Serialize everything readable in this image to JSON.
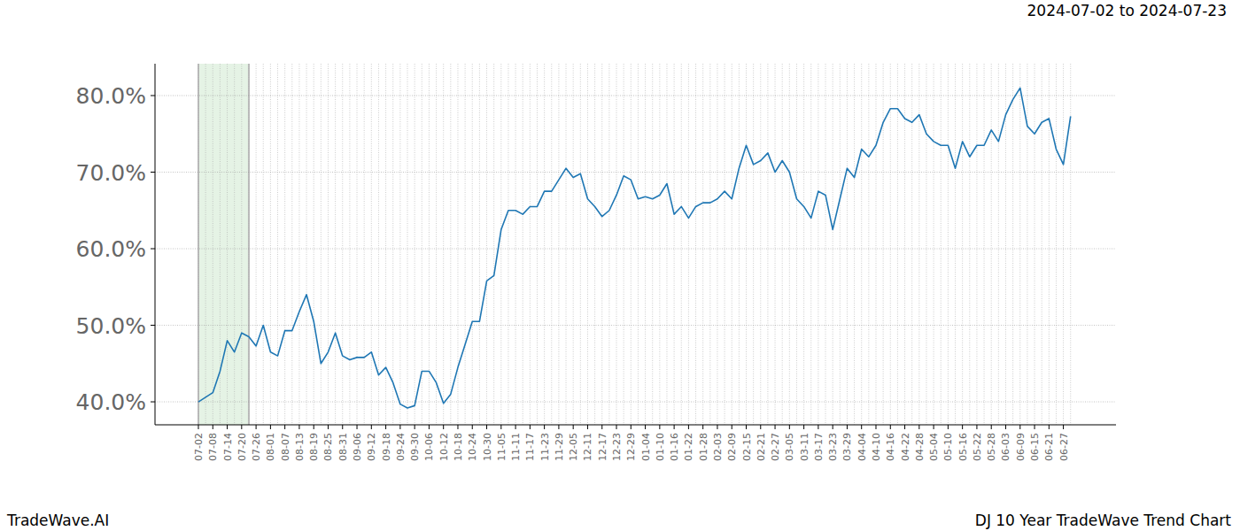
{
  "chart_data": {
    "type": "line",
    "title": "DJ 10 Year TradeWave Trend Chart",
    "subtitle": "2024-07-02 to 2024-07-23",
    "annotations": [
      "TradeWave.AI"
    ],
    "categories": [
      "07-02",
      null,
      "07-08",
      null,
      "07-14",
      null,
      "07-20",
      null,
      "07-26",
      null,
      "08-01",
      null,
      "08-07",
      null,
      "08-13",
      null,
      "08-19",
      null,
      "08-25",
      null,
      "08-31",
      null,
      "09-06",
      null,
      "09-12",
      null,
      "09-18",
      null,
      "09-24",
      null,
      "09-30",
      null,
      "10-06",
      null,
      "10-12",
      null,
      "10-18",
      null,
      "10-24",
      null,
      "10-30",
      null,
      "11-05",
      null,
      "11-11",
      null,
      "11-17",
      null,
      "11-23",
      null,
      "11-29",
      null,
      "12-05",
      null,
      "12-11",
      null,
      "12-17",
      null,
      "12-23",
      null,
      "12-29",
      null,
      "01-04",
      null,
      "01-10",
      null,
      "01-16",
      null,
      "01-22",
      null,
      "01-28",
      null,
      "02-03",
      null,
      "02-09",
      null,
      "02-15",
      null,
      "02-21",
      null,
      "02-27",
      null,
      "03-05",
      null,
      "03-11",
      null,
      "03-17",
      null,
      "03-23",
      null,
      "03-29",
      null,
      "04-04",
      null,
      "04-10",
      null,
      "04-16",
      null,
      "04-22",
      null,
      "04-28",
      null,
      "05-04",
      null,
      "05-10",
      null,
      "05-16",
      null,
      "05-22",
      null,
      "05-28",
      null,
      "06-03",
      null,
      "06-09",
      null,
      "06-15",
      null,
      "06-21",
      null,
      "06-27",
      null
    ],
    "values": [
      40.0,
      40.6,
      41.2,
      44.0,
      48.0,
      46.5,
      49.0,
      48.5,
      47.3,
      50.0,
      46.5,
      46.0,
      49.3,
      49.3,
      51.8,
      54.0,
      50.5,
      45.0,
      46.5,
      49.0,
      46.0,
      45.5,
      45.8,
      45.8,
      46.5,
      43.5,
      44.5,
      42.5,
      39.7,
      39.2,
      39.5,
      44.0,
      44.0,
      42.5,
      39.8,
      41.0,
      44.5,
      47.5,
      50.5,
      50.5,
      55.8,
      56.5,
      62.5,
      65.0,
      65.0,
      64.5,
      65.5,
      65.5,
      67.5,
      67.5,
      69.0,
      70.5,
      69.3,
      69.8,
      66.5,
      65.5,
      64.2,
      65.0,
      67.0,
      69.5,
      69.0,
      66.5,
      66.8,
      66.5,
      67.0,
      68.5,
      64.5,
      65.5,
      64.0,
      65.5,
      66.0,
      66.0,
      66.5,
      67.5,
      66.5,
      70.5,
      73.5,
      71.0,
      71.5,
      72.5,
      70.0,
      71.5,
      70.0,
      66.5,
      65.5,
      64.0,
      67.5,
      67.0,
      62.5,
      66.5,
      70.5,
      69.3,
      73.0,
      72.0,
      73.5,
      76.5,
      78.3,
      78.3,
      77.0,
      76.5,
      77.5,
      75.0,
      74.0,
      73.5,
      73.5,
      70.5,
      74.0,
      72.0,
      73.5,
      73.5,
      75.5,
      74.0,
      77.5,
      79.5,
      81.0,
      76.0,
      75.0,
      76.5,
      77.0,
      73.0,
      71.0,
      77.3
    ],
    "color": "#1f77b4",
    "highlight": {
      "start": 0,
      "end": 7
    },
    "xlim": [
      -6.02,
      127.3
    ],
    "ylim": [
      37.0,
      84.16
    ],
    "yticks": [
      {
        "value": 40,
        "label": "40.0%"
      },
      {
        "value": 50,
        "label": "50.0%"
      },
      {
        "value": 60,
        "label": "60.0%"
      },
      {
        "value": 70,
        "label": "70.0%"
      },
      {
        "value": 80,
        "label": "80.0%"
      }
    ],
    "grid": true
  }
}
